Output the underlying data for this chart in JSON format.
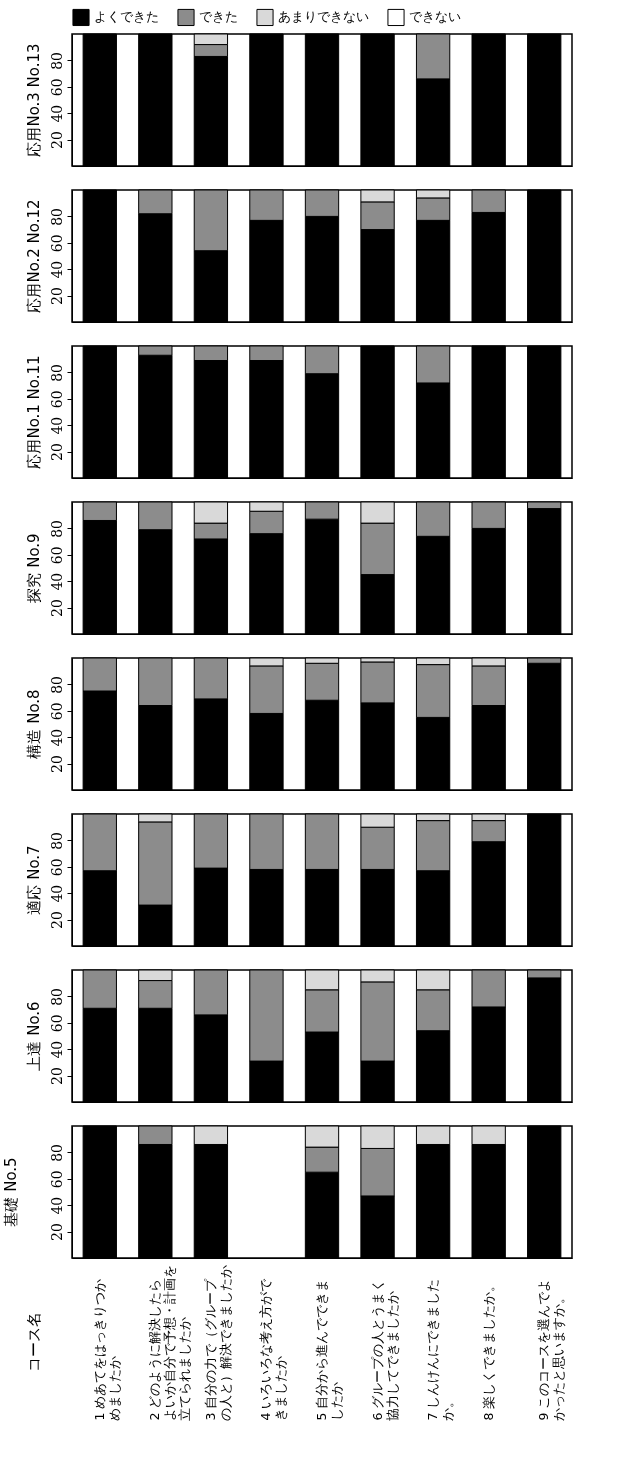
{
  "chart_data": [
    {
      "type": "bar",
      "stacked": true,
      "title": "応用No.3 No.13",
      "tick_labels": "y",
      "legend": "top",
      "categories": [
        "1 めあてをはっきりつかめましたか",
        "2 どのように解決したらよいか自分で予想・計画を立てられましたか",
        "3 自分の力で（グループの人と）解決できましたか",
        "4 いろいろな考え方ができましたか",
        "5 自分から進んでできましたか",
        "6 グループの人とうまく協力してできましたか",
        "7 しんけんにできましたか。",
        "8 楽しくできましたか。",
        "9 このコースを選んでよかったと思いますか。"
      ],
      "ylim": [
        0,
        100
      ],
      "yticks": [
        20,
        40,
        60,
        80
      ],
      "series": [
        {
          "name": "よくできた",
          "color": "#000000",
          "values": [
            100,
            100,
            83,
            100,
            100,
            100,
            66,
            100,
            100
          ]
        },
        {
          "name": "できた",
          "color": "#8c8c8c",
          "values": [
            null,
            null,
            9,
            null,
            null,
            null,
            34,
            null,
            null
          ]
        },
        {
          "name": "あまりできない",
          "color": "#d9d9d9",
          "values": [
            null,
            null,
            8,
            null,
            null,
            null,
            null,
            null,
            null
          ]
        },
        {
          "name": "できない",
          "color": "#ffffff",
          "values": [
            null,
            null,
            null,
            null,
            null,
            null,
            null,
            null,
            null
          ]
        }
      ]
    },
    {
      "type": "bar",
      "stacked": true,
      "title": "応用No.2 No.12",
      "tick_labels": "y",
      "categories": [
        "1 めあてをはっきりつかめましたか",
        "2 どのように解決したらよいか自分で予想・計画を立てられましたか",
        "3 自分の力で（グループの人と）解決できましたか",
        "4 いろいろな考え方ができましたか",
        "5 自分から進んでできましたか",
        "6 グループの人とうまく協力してできましたか",
        "7 しんけんにできましたか。",
        "8 楽しくできましたか。",
        "9 このコースを選んでよかったと思いますか。"
      ],
      "ylim": [
        0,
        100
      ],
      "yticks": [
        20,
        40,
        60,
        80
      ],
      "series": [
        {
          "color": "#000000",
          "values": [
            100,
            82,
            54,
            77,
            80,
            70,
            77,
            83,
            100
          ]
        },
        {
          "color": "#8c8c8c",
          "values": [
            null,
            18,
            46,
            23,
            20,
            21,
            17,
            17,
            null
          ]
        },
        {
          "color": "#d9d9d9",
          "values": [
            null,
            null,
            null,
            null,
            null,
            9,
            6,
            null,
            null
          ]
        },
        {
          "color": "#ffffff",
          "values": [
            null,
            null,
            null,
            null,
            null,
            null,
            null,
            null,
            null
          ]
        }
      ]
    },
    {
      "type": "bar",
      "stacked": true,
      "title": "応用No.1 No.11",
      "tick_labels": "y",
      "categories": [
        "1 めあてをはっきりつかめましたか",
        "2 どのように解決したらよいか自分で予想・計画を立てられましたか",
        "3 自分の力で（グループの人と）解決できましたか",
        "4 いろいろな考え方ができましたか",
        "5 自分から進んでできましたか",
        "6 グループの人とうまく協力してできましたか",
        "7 しんけんにできましたか。",
        "8 楽しくできましたか。",
        "9 このコースを選んでよかったと思いますか。"
      ],
      "ylim": [
        0,
        100
      ],
      "yticks": [
        20,
        40,
        60,
        80
      ],
      "series": [
        {
          "color": "#000000",
          "values": [
            100,
            93,
            89,
            89,
            79,
            100,
            72,
            100,
            100
          ]
        },
        {
          "color": "#8c8c8c",
          "values": [
            null,
            7,
            11,
            11,
            21,
            null,
            28,
            null,
            null
          ]
        },
        {
          "color": "#d9d9d9",
          "values": [
            null,
            null,
            null,
            null,
            null,
            null,
            null,
            null,
            null
          ]
        },
        {
          "color": "#ffffff",
          "values": [
            null,
            null,
            null,
            null,
            null,
            null,
            null,
            null,
            null
          ]
        }
      ]
    },
    {
      "type": "bar",
      "stacked": true,
      "title": "探究 No.9",
      "tick_labels": "y",
      "categories": [
        "1 めあてをはっきりつかめましたか",
        "2 どのように解決したらよいか自分で予想・計画を立てられましたか",
        "3 自分の力で（グループの人と）解決できましたか",
        "4 いろいろな考え方ができましたか",
        "5 自分から進んでできましたか",
        "6 グループの人とうまく協力してできましたか",
        "7 しんけんにできましたか。",
        "8 楽しくできましたか。",
        "9 このコースを選んでよかったと思いますか。"
      ],
      "ylim": [
        0,
        100
      ],
      "yticks": [
        20,
        40,
        60,
        80
      ],
      "series": [
        {
          "color": "#000000",
          "values": [
            86,
            79,
            72,
            76,
            87,
            45,
            74,
            80,
            95
          ]
        },
        {
          "color": "#8c8c8c",
          "values": [
            14,
            21,
            12,
            17,
            13,
            39,
            26,
            20,
            5
          ]
        },
        {
          "color": "#d9d9d9",
          "values": [
            null,
            null,
            16,
            7,
            null,
            16,
            null,
            null,
            null
          ]
        },
        {
          "color": "#ffffff",
          "values": [
            null,
            null,
            null,
            null,
            null,
            null,
            null,
            null,
            null
          ]
        }
      ]
    },
    {
      "type": "bar",
      "stacked": true,
      "title": "構造 No.8",
      "tick_labels": "y",
      "categories": [
        "1 めあてをはっきりつかめましたか",
        "2 どのように解決したらよいか自分で予想・計画を立てられましたか",
        "3 自分の力で（グループの人と）解決できましたか",
        "4 いろいろな考え方ができましたか",
        "5 自分から進んでできましたか",
        "6 グループの人とうまく協力してできましたか",
        "7 しんけんにできましたか。",
        "8 楽しくできましたか。",
        "9 このコースを選んでよかったと思いますか。"
      ],
      "ylim": [
        0,
        100
      ],
      "yticks": [
        20,
        40,
        60,
        80
      ],
      "series": [
        {
          "color": "#000000",
          "values": [
            75,
            64,
            69,
            58,
            68,
            66,
            55,
            64,
            96
          ]
        },
        {
          "color": "#8c8c8c",
          "values": [
            25,
            36,
            31,
            36,
            28,
            31,
            40,
            30,
            4
          ]
        },
        {
          "color": "#d9d9d9",
          "values": [
            null,
            null,
            null,
            6,
            4,
            3,
            5,
            6,
            null
          ]
        },
        {
          "color": "#ffffff",
          "values": [
            null,
            null,
            null,
            null,
            null,
            null,
            null,
            null,
            null
          ]
        }
      ]
    },
    {
      "type": "bar",
      "stacked": true,
      "title": "適応 No.7",
      "tick_labels": "y",
      "categories": [
        "1 めあてをはっきりつかめましたか",
        "2 どのように解決したらよいか自分で予想・計画を立てられましたか",
        "3 自分の力で（グループの人と）解決できましたか",
        "4 いろいろな考え方ができましたか",
        "5 自分から進んでできましたか",
        "6 グループの人とうまく協力してできましたか",
        "7 しんけんにできましたか。",
        "8 楽しくできましたか。",
        "9 このコースを選んでよかったと思いますか。"
      ],
      "ylim": [
        0,
        100
      ],
      "yticks": [
        20,
        40,
        60,
        80
      ],
      "series": [
        {
          "color": "#000000",
          "values": [
            57,
            31,
            59,
            58,
            58,
            58,
            57,
            79,
            100
          ]
        },
        {
          "color": "#8c8c8c",
          "values": [
            43,
            63,
            41,
            42,
            42,
            32,
            38,
            16,
            null
          ]
        },
        {
          "color": "#d9d9d9",
          "values": [
            null,
            6,
            null,
            null,
            null,
            10,
            5,
            5,
            null
          ]
        },
        {
          "color": "#ffffff",
          "values": [
            null,
            null,
            null,
            null,
            null,
            null,
            null,
            null,
            null
          ]
        }
      ]
    },
    {
      "type": "bar",
      "stacked": true,
      "title": "上達 No.6",
      "tick_labels": "y",
      "categories": [
        "1 めあてをはっきりつかめましたか",
        "2 どのように解決したらよいか自分で予想・計画を立てられましたか",
        "3 自分の力で（グループの人と）解決できましたか",
        "4 いろいろな考え方ができましたか",
        "5 自分から進んでできましたか",
        "6 グループの人とうまく協力してできましたか",
        "7 しんけんにできましたか。",
        "8 楽しくできましたか。",
        "9 このコースを選んでよかったと思いますか。"
      ],
      "ylim": [
        0,
        100
      ],
      "yticks": [
        20,
        40,
        60,
        80
      ],
      "series": [
        {
          "color": "#000000",
          "values": [
            71,
            71,
            66,
            31,
            53,
            31,
            54,
            72,
            94
          ]
        },
        {
          "color": "#8c8c8c",
          "values": [
            29,
            21,
            34,
            69,
            32,
            60,
            31,
            28,
            6
          ]
        },
        {
          "color": "#d9d9d9",
          "values": [
            null,
            8,
            null,
            null,
            15,
            9,
            15,
            null,
            null
          ]
        },
        {
          "color": "#ffffff",
          "values": [
            null,
            null,
            null,
            null,
            null,
            null,
            null,
            null,
            null
          ]
        }
      ]
    },
    {
      "type": "bar",
      "stacked": true,
      "title": "基礎 No.5",
      "annotations": [
        "コース名"
      ],
      "categories": [
        "1 めあてをはっきりつかめましたか",
        "2 どのように解決したらよいか自分で予想・計画を立てられましたか",
        "3 自分の力で（グループの人と）解決できましたか",
        "4 いろいろな考え方ができましたか",
        "5 自分から進んでできましたか",
        "6 グループの人とうまく協力してできましたか",
        "7 しんけんにできましたか。",
        "8 楽しくできましたか。",
        "9 このコースを選んでよかったと思いますか。"
      ],
      "ylim": [
        0,
        100
      ],
      "yticks": [
        20,
        40,
        60,
        80
      ],
      "series": [
        {
          "color": "#000000",
          "values": [
            100,
            86,
            86,
            null,
            65,
            47,
            86,
            86,
            100
          ]
        },
        {
          "color": "#8c8c8c",
          "values": [
            null,
            14,
            null,
            null,
            19,
            36,
            null,
            null,
            null
          ]
        },
        {
          "color": "#d9d9d9",
          "values": [
            null,
            null,
            14,
            null,
            16,
            17,
            14,
            14,
            null
          ]
        },
        {
          "color": "#ffffff",
          "values": [
            null,
            null,
            null,
            null,
            null,
            null,
            null,
            null,
            null
          ]
        }
      ]
    }
  ]
}
